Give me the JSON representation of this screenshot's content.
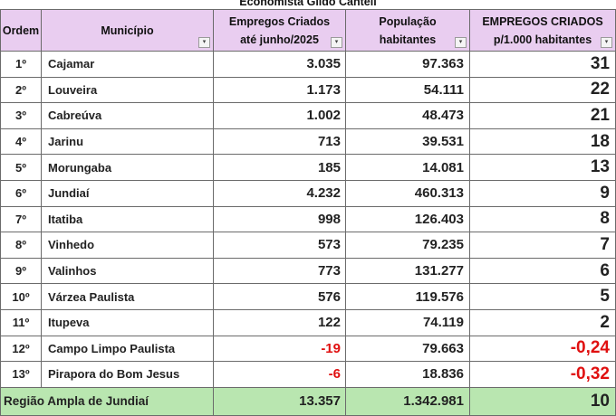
{
  "caption": "Economista Gildo Canteli",
  "headers": {
    "ordem": "Ordem",
    "municipio": "Município",
    "empregos_l1": "Empregos Criados",
    "empregos_l2": "até junho/2025",
    "populacao_l1": "População",
    "populacao_l2": "habitantes",
    "taxa_l1": "EMPREGOS CRIADOS",
    "taxa_l2": "p/1.000 habitantes"
  },
  "filter_glyph": "▾",
  "rows": [
    {
      "ordem": "1º",
      "municipio": "Cajamar",
      "empregos": "3.035",
      "populacao": "97.363",
      "taxa": "31"
    },
    {
      "ordem": "2º",
      "municipio": "Louveira",
      "empregos": "1.173",
      "populacao": "54.111",
      "taxa": "22"
    },
    {
      "ordem": "3º",
      "municipio": "Cabreúva",
      "empregos": "1.002",
      "populacao": "48.473",
      "taxa": "21"
    },
    {
      "ordem": "4º",
      "municipio": "Jarinu",
      "empregos": "713",
      "populacao": "39.531",
      "taxa": "18"
    },
    {
      "ordem": "5º",
      "municipio": "Morungaba",
      "empregos": "185",
      "populacao": "14.081",
      "taxa": "13"
    },
    {
      "ordem": "6º",
      "municipio": "Jundiaí",
      "empregos": "4.232",
      "populacao": "460.313",
      "taxa": "9"
    },
    {
      "ordem": "7º",
      "municipio": "Itatiba",
      "empregos": "998",
      "populacao": "126.403",
      "taxa": "8"
    },
    {
      "ordem": "8º",
      "municipio": "Vinhedo",
      "empregos": "573",
      "populacao": "79.235",
      "taxa": "7"
    },
    {
      "ordem": "9º",
      "municipio": "Valinhos",
      "empregos": "773",
      "populacao": "131.277",
      "taxa": "6"
    },
    {
      "ordem": "10º",
      "municipio": "Várzea Paulista",
      "empregos": "576",
      "populacao": "119.576",
      "taxa": "5"
    },
    {
      "ordem": "11º",
      "municipio": "Itupeva",
      "empregos": "122",
      "populacao": "74.119",
      "taxa": "2"
    },
    {
      "ordem": "12º",
      "municipio": "Campo Limpo Paulista",
      "empregos": "-19",
      "populacao": "79.663",
      "taxa": "-0,24"
    },
    {
      "ordem": "13º",
      "municipio": "Pirapora do Bom Jesus",
      "empregos": "-6",
      "populacao": "18.836",
      "taxa": "-0,32"
    }
  ],
  "total": {
    "label": "Região Ampla de Jundiaí",
    "empregos": "13.357",
    "populacao": "1.342.981",
    "taxa": "10"
  },
  "colors": {
    "header_bg": "#e9cdf0",
    "total_bg": "#b9e6b0",
    "negative": "#e01010"
  }
}
